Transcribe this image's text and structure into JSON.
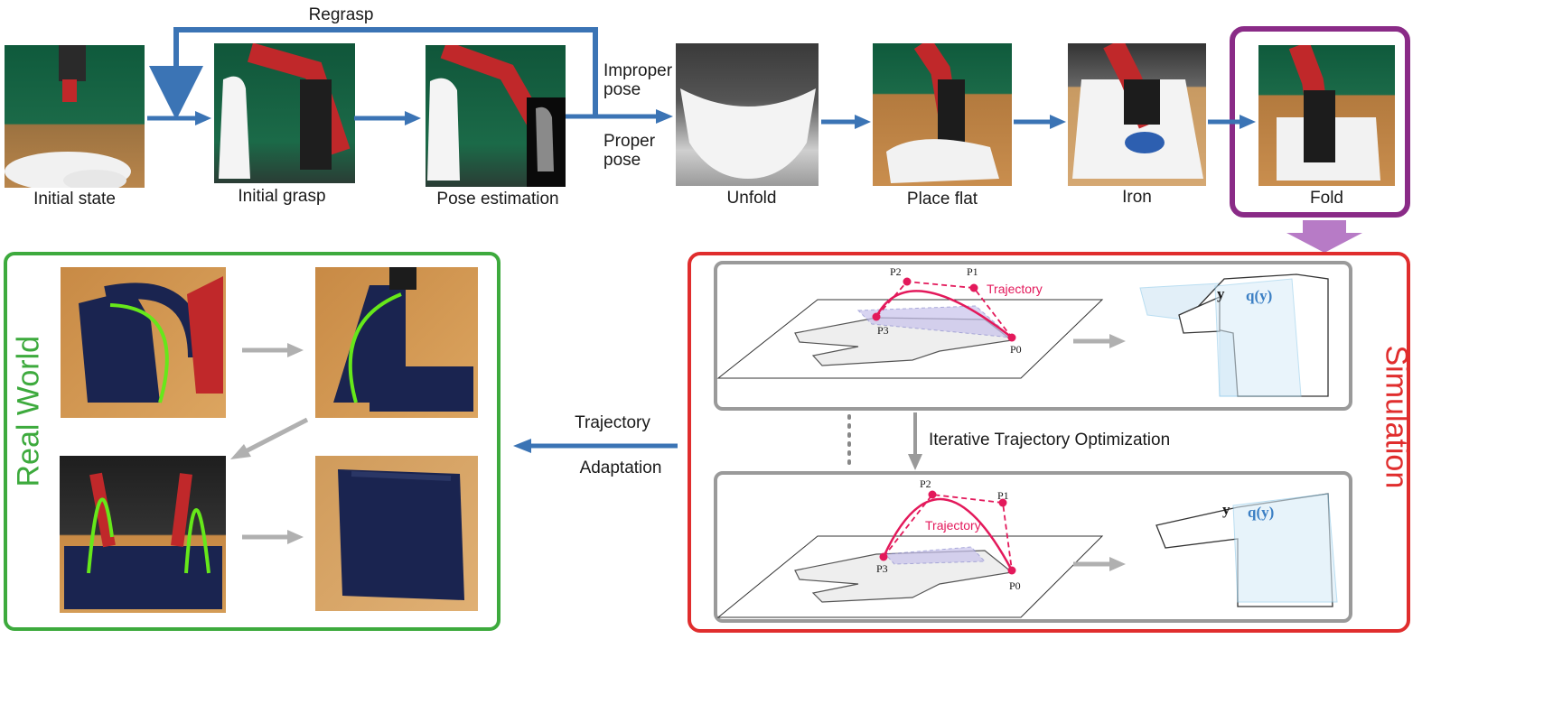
{
  "pipeline": {
    "regrasp_label": "Regrasp",
    "improper_label": "Improper\npose",
    "proper_label": "Proper\npose",
    "steps": [
      {
        "label": "Initial state"
      },
      {
        "label": "Initial grasp"
      },
      {
        "label": "Pose estimation"
      },
      {
        "label": "Unfold"
      },
      {
        "label": "Place flat"
      },
      {
        "label": "Iron"
      },
      {
        "label": "Fold"
      }
    ]
  },
  "real_world": {
    "title": "Real World"
  },
  "simulation": {
    "title": "Simulation",
    "iteration_label": "Iterative Trajectory Optimization",
    "top": {
      "trajectory_label": "Trajectory",
      "p2": "P2",
      "p1": "P1",
      "p3": "P3",
      "p0": "P0",
      "y": "y",
      "qy": "q(y)"
    },
    "bottom": {
      "trajectory_label": "Trajectory",
      "p2": "P2",
      "p1": "P1",
      "p3": "P3",
      "p0": "P0",
      "y": "y",
      "qy": "q(y)"
    }
  },
  "adaptation": {
    "line1": "Trajectory",
    "line2": "Adaptation"
  },
  "colors": {
    "blue_arrow": "#3b74b5",
    "gray_arrow": "#b0b0b0",
    "green_frame": "#3daa3d",
    "red_frame": "#e02d2d",
    "purple_frame": "#8a2b87",
    "trajectory": "#e3195b",
    "green_curve": "#66e81a"
  }
}
